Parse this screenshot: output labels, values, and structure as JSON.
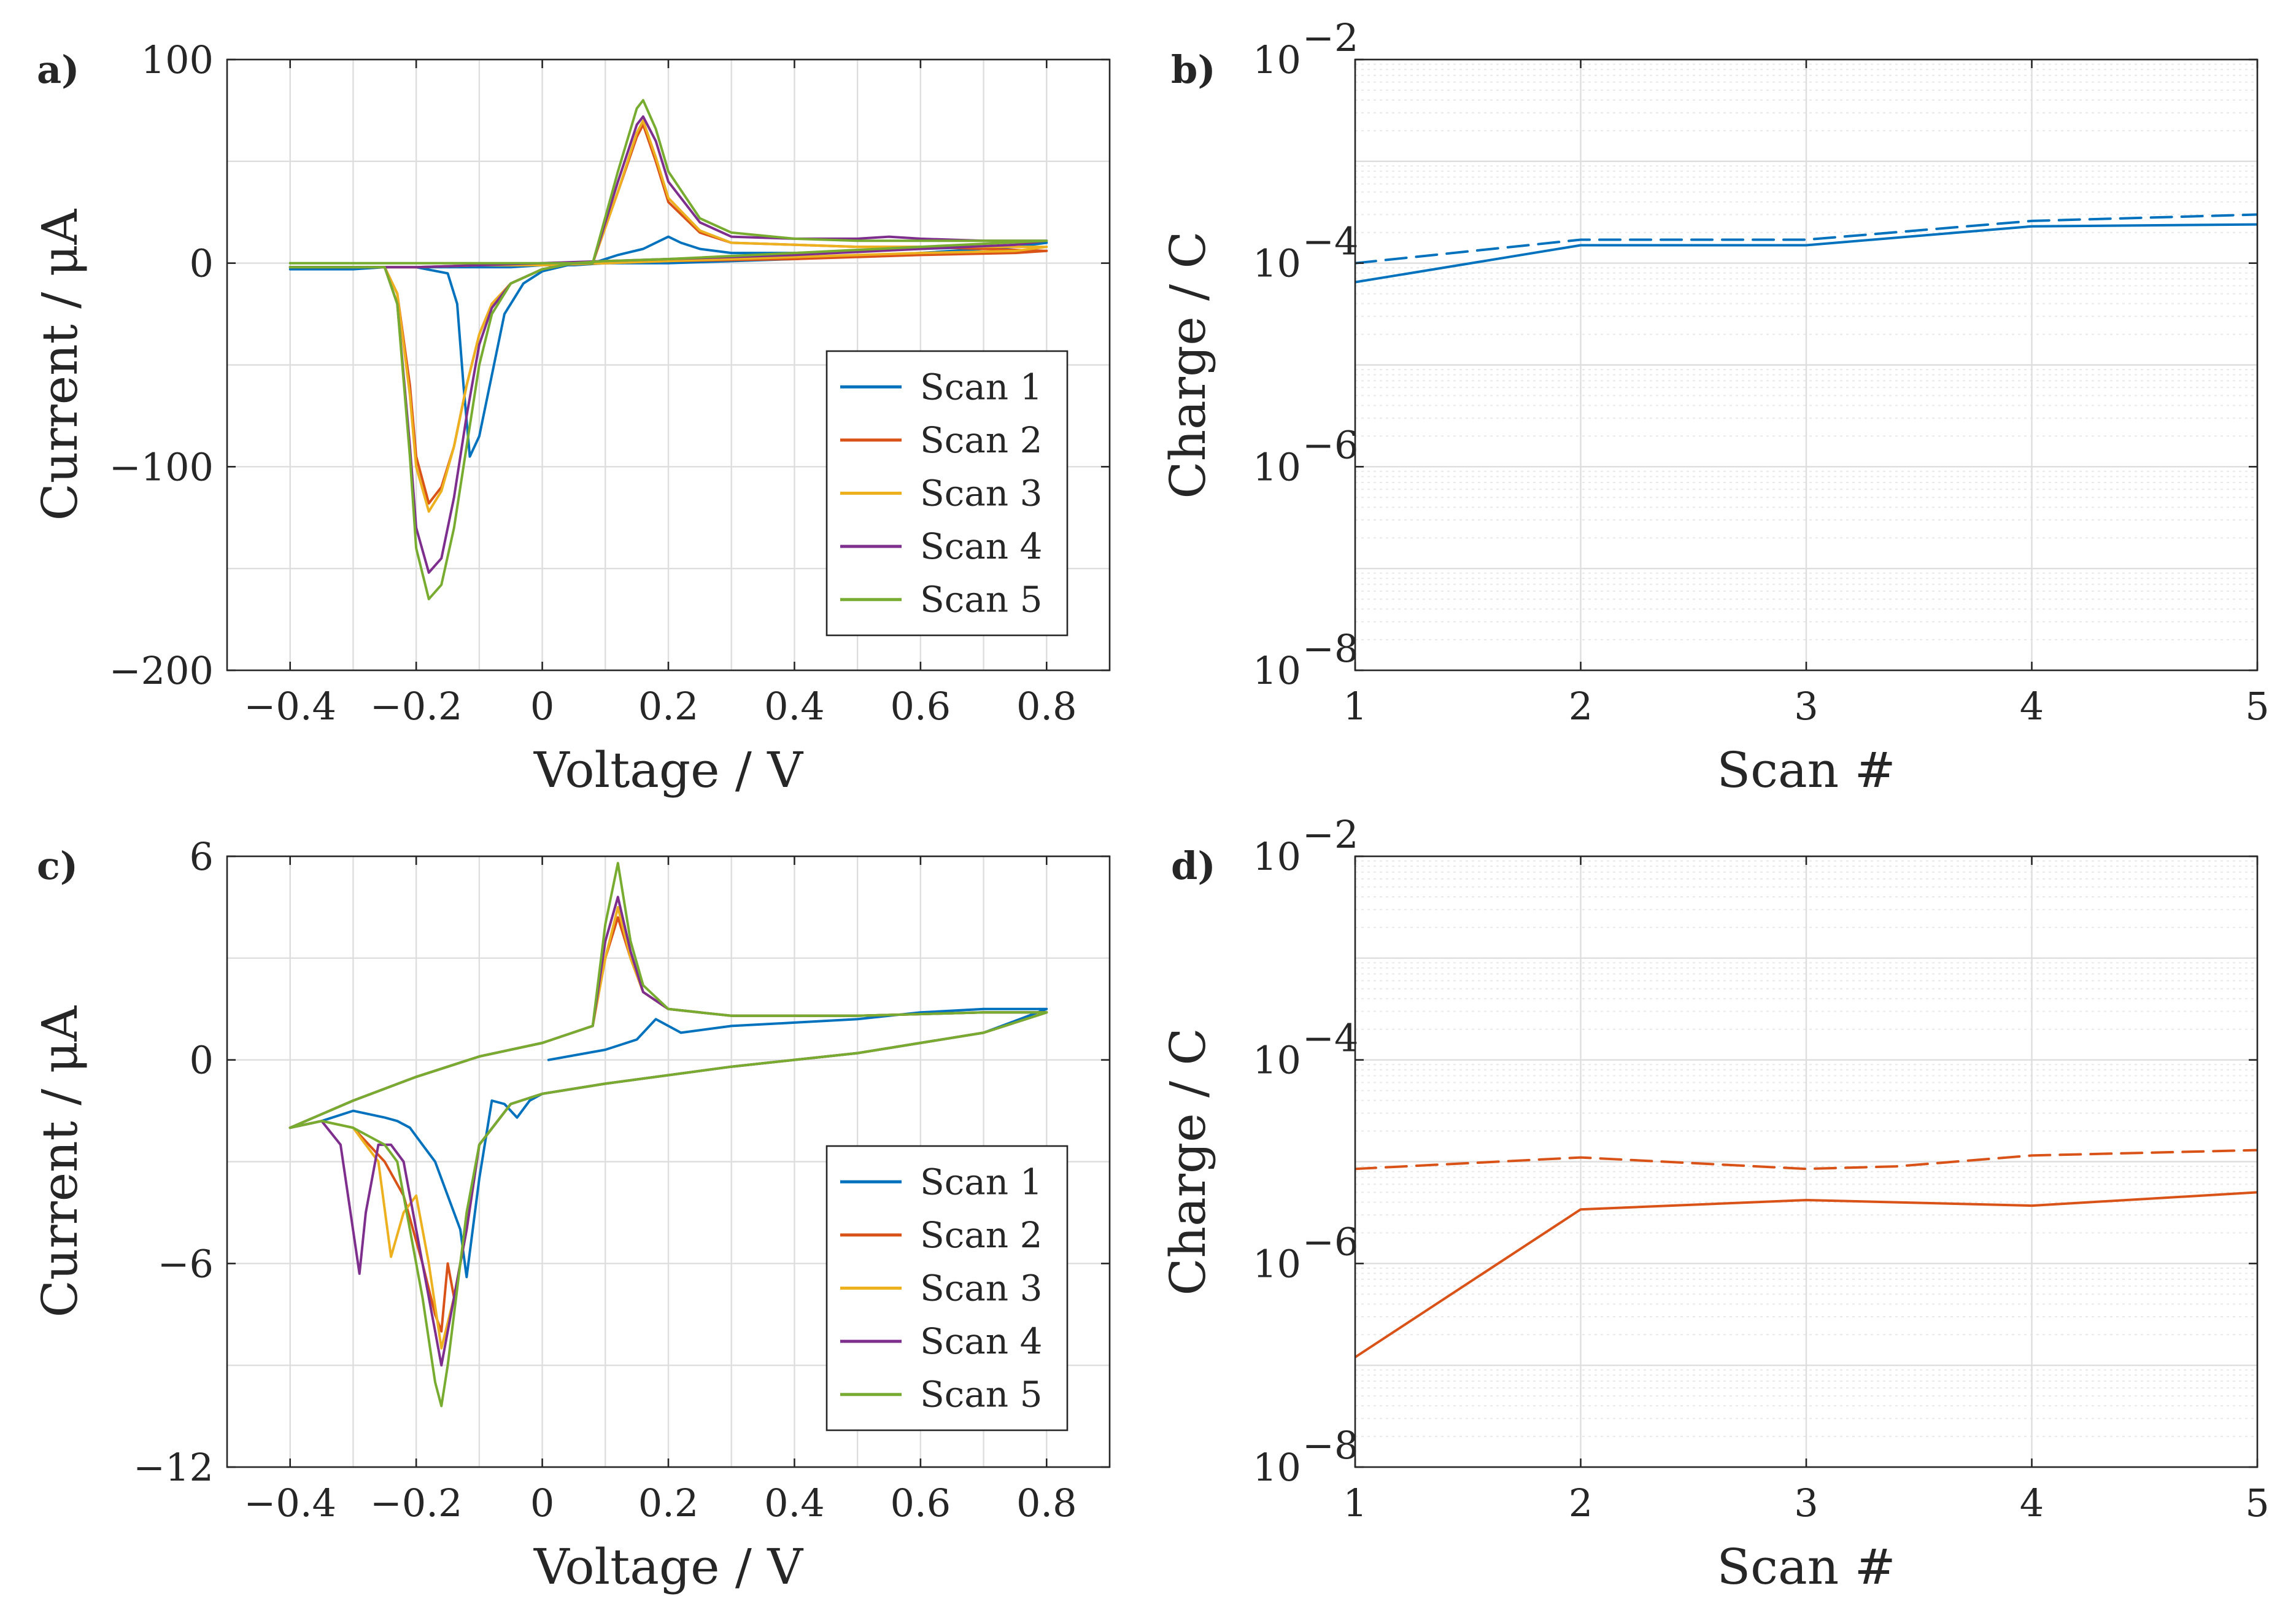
{
  "colors": {
    "scan1": "#0072bd",
    "scan2": "#d95319",
    "scan3": "#edb120",
    "scan4": "#7e2f8e",
    "scan5": "#77ac30"
  },
  "chart_data": [
    {
      "id": "a",
      "panel_label": "a)",
      "type": "line",
      "xlabel": "Voltage / V",
      "ylabel": "Current / μA",
      "xlim": [
        -0.5,
        0.9
      ],
      "ylim": [
        -200,
        100
      ],
      "xticks": [
        -0.4,
        -0.2,
        0,
        0.2,
        0.4,
        0.6,
        0.8
      ],
      "xtick_labels": [
        "−0.4",
        "−0.2",
        "0",
        "0.2",
        "0.4",
        "0.6",
        "0.8"
      ],
      "yticks": [
        -200,
        -100,
        0,
        100
      ],
      "ytick_labels": [
        "−200",
        "−100",
        "0",
        "100"
      ],
      "grid": true,
      "legend_position": "bottom-right",
      "series": [
        {
          "name": "Scan 1",
          "color": "#0072bd",
          "x": [
            -0.4,
            -0.2,
            -0.15,
            -0.135,
            -0.125,
            -0.115,
            -0.1,
            -0.08,
            -0.06,
            -0.03,
            0,
            0.04,
            0.08,
            0.12,
            0.16,
            0.2,
            0.22,
            0.25,
            0.3,
            0.4,
            0.5,
            0.6,
            0.7,
            0.8,
            0.75,
            0.6,
            0.4,
            0.2,
            0.1,
            0.05,
            0.03,
            0,
            -0.05,
            -0.1,
            -0.15,
            -0.2,
            -0.25,
            -0.3,
            -0.4
          ],
          "y": [
            -2,
            -2,
            -5,
            -20,
            -60,
            -95,
            -85,
            -55,
            -25,
            -10,
            -4,
            -1,
            0,
            4,
            7,
            13,
            10,
            7,
            5,
            5,
            6,
            7,
            8,
            10,
            8,
            5,
            2,
            0,
            0,
            -1,
            -1,
            -1,
            -2,
            -2,
            -2,
            -2,
            -2,
            -3,
            -3
          ]
        },
        {
          "name": "Scan 2",
          "color": "#d95319",
          "x": [
            -0.4,
            -0.25,
            -0.23,
            -0.21,
            -0.2,
            -0.18,
            -0.16,
            -0.14,
            -0.12,
            -0.1,
            -0.08,
            -0.05,
            0,
            0.05,
            0.08,
            0.12,
            0.15,
            0.16,
            0.18,
            0.2,
            0.25,
            0.3,
            0.4,
            0.5,
            0.6,
            0.7,
            0.8,
            0.75,
            0.6,
            0.4,
            0.2,
            0.1,
            0,
            -0.1,
            -0.2,
            -0.3,
            -0.4
          ],
          "y": [
            -2,
            -2,
            -15,
            -60,
            -95,
            -118,
            -110,
            -90,
            -60,
            -35,
            -20,
            -10,
            -3,
            0,
            0,
            35,
            62,
            68,
            50,
            30,
            15,
            10,
            9,
            8,
            8,
            7,
            6,
            5,
            4,
            2,
            1,
            0,
            -1,
            -1,
            -2,
            -2,
            -2
          ]
        },
        {
          "name": "Scan 3",
          "color": "#edb120",
          "x": [
            -0.4,
            -0.25,
            -0.23,
            -0.21,
            -0.2,
            -0.18,
            -0.16,
            -0.14,
            -0.12,
            -0.1,
            -0.08,
            -0.05,
            0,
            0.05,
            0.08,
            0.12,
            0.15,
            0.16,
            0.18,
            0.2,
            0.25,
            0.3,
            0.4,
            0.5,
            0.6,
            0.7,
            0.8,
            0.75,
            0.6,
            0.4,
            0.2,
            0.1,
            0,
            -0.1,
            -0.2,
            -0.3,
            -0.4
          ],
          "y": [
            -2,
            -2,
            -15,
            -65,
            -100,
            -122,
            -112,
            -90,
            -60,
            -35,
            -20,
            -10,
            -3,
            0,
            0,
            35,
            64,
            70,
            52,
            32,
            16,
            10,
            9,
            8,
            8,
            8,
            8,
            6,
            5,
            3,
            1,
            0,
            -1,
            -1,
            -2,
            -2,
            -2
          ]
        },
        {
          "name": "Scan 4",
          "color": "#7e2f8e",
          "x": [
            -0.4,
            -0.25,
            -0.23,
            -0.21,
            -0.2,
            -0.18,
            -0.16,
            -0.14,
            -0.12,
            -0.1,
            -0.08,
            -0.05,
            0,
            0.05,
            0.08,
            0.12,
            0.15,
            0.16,
            0.18,
            0.2,
            0.25,
            0.3,
            0.4,
            0.5,
            0.55,
            0.6,
            0.7,
            0.8,
            0.75,
            0.6,
            0.4,
            0.2,
            0.1,
            0,
            -0.1,
            -0.2,
            -0.3,
            -0.4
          ],
          "y": [
            -2,
            -2,
            -20,
            -90,
            -130,
            -152,
            -145,
            -115,
            -75,
            -40,
            -22,
            -10,
            -3,
            0,
            0,
            40,
            68,
            72,
            60,
            40,
            20,
            13,
            12,
            12,
            13,
            12,
            11,
            11,
            9,
            7,
            4,
            2,
            1,
            0,
            -1,
            -2,
            -2,
            -2
          ]
        },
        {
          "name": "Scan 5",
          "color": "#77ac30",
          "x": [
            -0.4,
            -0.25,
            -0.23,
            -0.21,
            -0.2,
            -0.18,
            -0.16,
            -0.14,
            -0.12,
            -0.1,
            -0.08,
            -0.05,
            0,
            0.05,
            0.08,
            0.12,
            0.15,
            0.16,
            0.18,
            0.2,
            0.25,
            0.3,
            0.4,
            0.5,
            0.6,
            0.7,
            0.8,
            0.6,
            0.4,
            0.2,
            0.1,
            0.05,
            0,
            -0.2,
            -0.4
          ],
          "y": [
            -2,
            -2,
            -20,
            -95,
            -140,
            -165,
            -158,
            -130,
            -90,
            -50,
            -25,
            -10,
            -3,
            0,
            0,
            45,
            76,
            80,
            66,
            45,
            22,
            15,
            12,
            11,
            11,
            11,
            11,
            8,
            5,
            2,
            1,
            0,
            0,
            0,
            0
          ]
        }
      ]
    },
    {
      "id": "b",
      "panel_label": "b)",
      "type": "line",
      "xlabel": "Scan #",
      "ylabel": "Charge / C",
      "yscale": "log",
      "xlim": [
        1,
        5
      ],
      "ylim_exp": [
        -8,
        -2
      ],
      "xticks": [
        1,
        2,
        3,
        4,
        5
      ],
      "xtick_labels": [
        "1",
        "2",
        "3",
        "4",
        "5"
      ],
      "ytick_base": "10",
      "ytick_exponents": [
        "−8",
        "−6",
        "−4",
        "−2"
      ],
      "ytick_exp_values": [
        -8,
        -6,
        -4,
        -2
      ],
      "grid": true,
      "series": [
        {
          "name": "solid",
          "style": "solid",
          "color": "#0072bd",
          "x": [
            1,
            2,
            3,
            4,
            5
          ],
          "y": [
            6.5e-05,
            0.00015,
            0.00015,
            0.00023,
            0.00024
          ]
        },
        {
          "name": "dashed",
          "style": "dashed",
          "color": "#0072bd",
          "x": [
            1,
            2,
            3,
            4,
            5
          ],
          "y": [
            0.0001,
            0.00017,
            0.00017,
            0.00026,
            0.0003
          ]
        }
      ]
    },
    {
      "id": "c",
      "panel_label": "c)",
      "type": "line",
      "xlabel": "Voltage / V",
      "ylabel": "Current / μA",
      "xlim": [
        -0.5,
        0.9
      ],
      "ylim": [
        -12,
        6
      ],
      "xticks": [
        -0.4,
        -0.2,
        0,
        0.2,
        0.4,
        0.6,
        0.8
      ],
      "xtick_labels": [
        "−0.4",
        "−0.2",
        "0",
        "0.2",
        "0.4",
        "0.6",
        "0.8"
      ],
      "yticks": [
        -12,
        -6,
        0,
        6
      ],
      "ytick_labels": [
        "−12",
        "−6",
        "0",
        "6"
      ],
      "grid": true,
      "legend_position": "bottom-right",
      "series": [
        {
          "name": "Scan 1",
          "color": "#0072bd",
          "x": [
            0.01,
            0.1,
            0.15,
            0.18,
            0.22,
            0.3,
            0.4,
            0.5,
            0.6,
            0.7,
            0.8,
            0.7,
            0.5,
            0.3,
            0.1,
            0.0,
            -0.02,
            -0.04,
            -0.06,
            -0.08,
            -0.1,
            -0.12,
            -0.13,
            -0.15,
            -0.17,
            -0.19,
            -0.21,
            -0.23,
            -0.25,
            -0.3,
            -0.35,
            -0.4
          ],
          "y": [
            0,
            0.3,
            0.6,
            1.2,
            0.8,
            1.0,
            1.1,
            1.2,
            1.4,
            1.5,
            1.5,
            0.8,
            0.2,
            -0.2,
            -0.7,
            -1.0,
            -1.2,
            -1.7,
            -1.3,
            -1.2,
            -3.5,
            -6.4,
            -5.0,
            -4.0,
            -3.0,
            -2.5,
            -2.0,
            -1.8,
            -1.7,
            -1.5,
            -1.8,
            -2.0
          ]
        },
        {
          "name": "Scan 2",
          "color": "#d95319",
          "x": [
            -0.4,
            -0.3,
            -0.2,
            -0.1,
            0.0,
            0.08,
            0.1,
            0.12,
            0.14,
            0.16,
            0.2,
            0.3,
            0.5,
            0.7,
            0.8,
            0.7,
            0.5,
            0.3,
            0.1,
            0.0,
            -0.05,
            -0.1,
            -0.12,
            -0.14,
            -0.15,
            -0.16,
            -0.17,
            -0.19,
            -0.22,
            -0.25,
            -0.3,
            -0.35,
            -0.4
          ],
          "y": [
            -2.0,
            -1.2,
            -0.5,
            0.1,
            0.5,
            1.0,
            3.0,
            4.2,
            3.0,
            2.0,
            1.5,
            1.3,
            1.3,
            1.4,
            1.4,
            0.8,
            0.2,
            -0.2,
            -0.7,
            -1.0,
            -1.3,
            -2.5,
            -5.0,
            -7.0,
            -6.0,
            -8.0,
            -7.5,
            -6.0,
            -4.0,
            -3.0,
            -2.0,
            -1.8,
            -2.0
          ]
        },
        {
          "name": "Scan 3",
          "color": "#edb120",
          "x": [
            -0.4,
            -0.3,
            -0.2,
            -0.1,
            0.0,
            0.08,
            0.1,
            0.12,
            0.14,
            0.16,
            0.2,
            0.3,
            0.5,
            0.7,
            0.8,
            0.7,
            0.5,
            0.3,
            0.1,
            0.0,
            -0.05,
            -0.1,
            -0.12,
            -0.14,
            -0.16,
            -0.18,
            -0.2,
            -0.22,
            -0.24,
            -0.26,
            -0.3,
            -0.35,
            -0.4
          ],
          "y": [
            -2.0,
            -1.2,
            -0.5,
            0.1,
            0.5,
            1.0,
            3.0,
            4.5,
            3.0,
            2.0,
            1.5,
            1.3,
            1.3,
            1.4,
            1.4,
            0.8,
            0.2,
            -0.2,
            -0.7,
            -1.0,
            -1.3,
            -2.5,
            -5.0,
            -7.0,
            -8.5,
            -6.0,
            -4.0,
            -4.5,
            -5.8,
            -3.0,
            -2.0,
            -1.8,
            -2.0
          ]
        },
        {
          "name": "Scan 4",
          "color": "#7e2f8e",
          "x": [
            -0.4,
            -0.3,
            -0.2,
            -0.1,
            0.0,
            0.08,
            0.1,
            0.12,
            0.14,
            0.16,
            0.2,
            0.3,
            0.5,
            0.7,
            0.8,
            0.7,
            0.5,
            0.3,
            0.1,
            0.0,
            -0.05,
            -0.1,
            -0.12,
            -0.14,
            -0.16,
            -0.17,
            -0.18,
            -0.2,
            -0.22,
            -0.24,
            -0.26,
            -0.28,
            -0.29,
            -0.32,
            -0.35,
            -0.4
          ],
          "y": [
            -2.0,
            -1.2,
            -0.5,
            0.1,
            0.5,
            1.0,
            3.5,
            4.8,
            3.2,
            2.0,
            1.5,
            1.3,
            1.3,
            1.4,
            1.4,
            0.8,
            0.2,
            -0.2,
            -0.7,
            -1.0,
            -1.3,
            -2.5,
            -5.0,
            -7.0,
            -9.0,
            -8.0,
            -7.0,
            -5.0,
            -3.0,
            -2.5,
            -2.5,
            -4.5,
            -6.3,
            -2.5,
            -1.8,
            -2.0
          ]
        },
        {
          "name": "Scan 5",
          "color": "#77ac30",
          "x": [
            -0.4,
            -0.3,
            -0.2,
            -0.1,
            0.0,
            0.08,
            0.1,
            0.12,
            0.14,
            0.16,
            0.2,
            0.3,
            0.5,
            0.7,
            0.8,
            0.7,
            0.5,
            0.3,
            0.1,
            0.0,
            -0.05,
            -0.1,
            -0.12,
            -0.13,
            -0.15,
            -0.16,
            -0.17,
            -0.19,
            -0.21,
            -0.23,
            -0.25,
            -0.3,
            -0.35,
            -0.4
          ],
          "y": [
            -2.0,
            -1.2,
            -0.5,
            0.1,
            0.5,
            1.0,
            4.0,
            5.8,
            3.5,
            2.2,
            1.5,
            1.3,
            1.3,
            1.4,
            1.4,
            0.8,
            0.2,
            -0.2,
            -0.7,
            -1.0,
            -1.3,
            -2.5,
            -4.5,
            -6.0,
            -9.0,
            -10.2,
            -9.5,
            -7.0,
            -5.0,
            -3.0,
            -2.5,
            -2.0,
            -1.8,
            -2.0
          ]
        }
      ]
    },
    {
      "id": "d",
      "panel_label": "d)",
      "type": "line",
      "xlabel": "Scan #",
      "ylabel": "Charge / C",
      "yscale": "log",
      "xlim": [
        1,
        5
      ],
      "ylim_exp": [
        -8,
        -2
      ],
      "xticks": [
        1,
        2,
        3,
        4,
        5
      ],
      "xtick_labels": [
        "1",
        "2",
        "3",
        "4",
        "5"
      ],
      "ytick_base": "10",
      "ytick_exponents": [
        "−8",
        "−6",
        "−4",
        "−2"
      ],
      "ytick_exp_values": [
        -8,
        -6,
        -4,
        -2
      ],
      "grid": true,
      "series": [
        {
          "name": "solid",
          "style": "solid",
          "color": "#d95319",
          "x": [
            1,
            2,
            3,
            4,
            5
          ],
          "y": [
            1.2e-07,
            3.4e-06,
            4.2e-06,
            3.7e-06,
            5e-06
          ]
        },
        {
          "name": "dashed",
          "style": "dashed",
          "color": "#d95319",
          "x": [
            1,
            2,
            3,
            3.4,
            4,
            5
          ],
          "y": [
            8.5e-06,
            1.1e-05,
            8.5e-06,
            9e-06,
            1.15e-05,
            1.3e-05
          ]
        }
      ]
    }
  ]
}
